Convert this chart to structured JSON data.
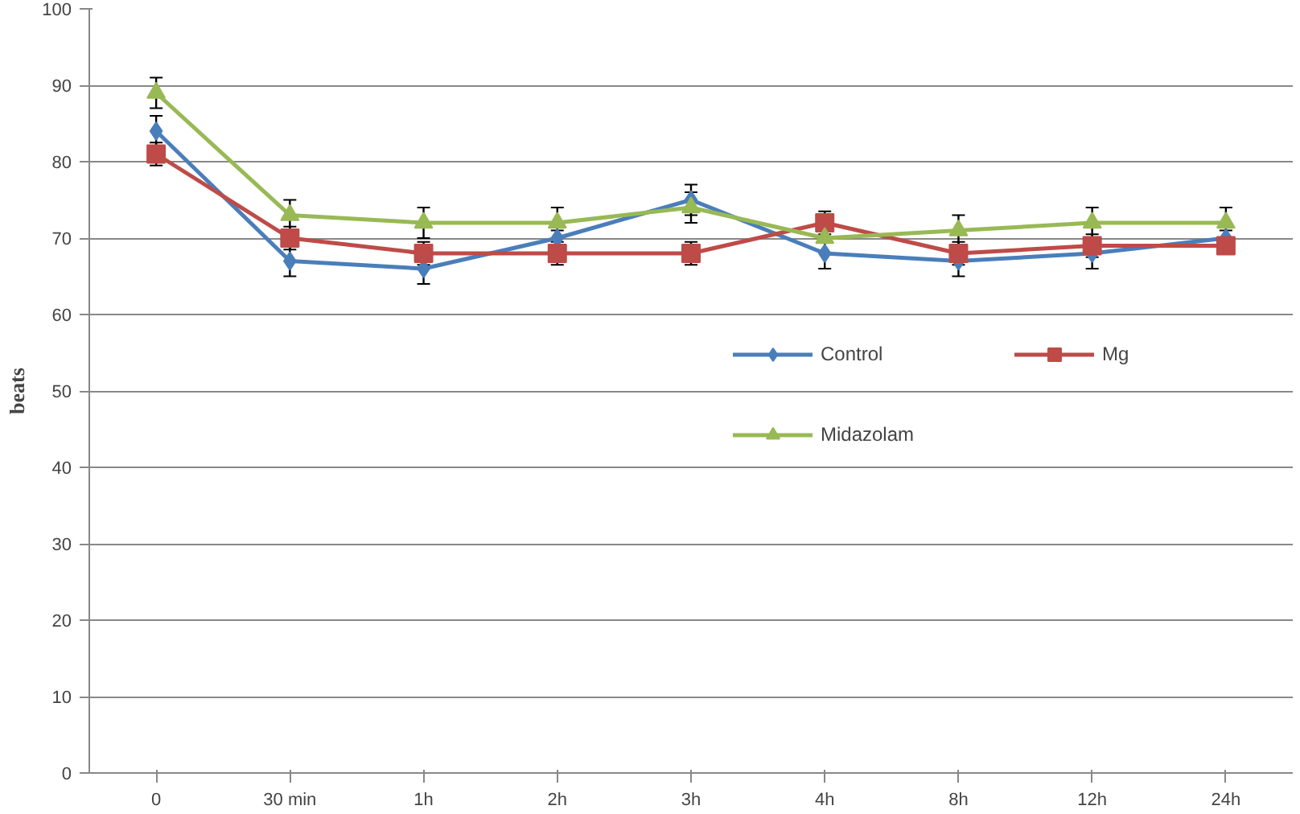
{
  "chart_data": {
    "type": "line",
    "ylabel": "beats",
    "categories": [
      "0",
      "30 min",
      "1h",
      "2h",
      "3h",
      "4h",
      "8h",
      "12h",
      "24h"
    ],
    "ylim": [
      0,
      100
    ],
    "yticks": [
      0,
      10,
      20,
      30,
      40,
      50,
      60,
      70,
      80,
      90,
      100
    ],
    "grid": "y",
    "legend": "right",
    "series": [
      {
        "name": "Control",
        "color": "#4a7ebb",
        "marker": "diamond",
        "values": [
          84,
          67,
          66,
          70,
          75,
          68,
          67,
          68,
          70
        ],
        "errors": [
          2,
          2,
          2,
          1,
          2,
          2,
          2,
          2,
          1
        ]
      },
      {
        "name": "Mg",
        "color": "#be4b48",
        "marker": "square",
        "values": [
          81,
          70,
          68,
          68,
          68,
          72,
          68,
          69,
          69
        ],
        "errors": [
          1.5,
          1.5,
          1.5,
          1.5,
          1.5,
          1.5,
          1.5,
          1.5,
          1
        ]
      },
      {
        "name": "Midazolam",
        "color": "#98b954",
        "marker": "triangle",
        "values": [
          89,
          73,
          72,
          72,
          74,
          70,
          71,
          72,
          72
        ],
        "errors": [
          2,
          2,
          2,
          2,
          2,
          null,
          2,
          2,
          2
        ]
      }
    ]
  }
}
